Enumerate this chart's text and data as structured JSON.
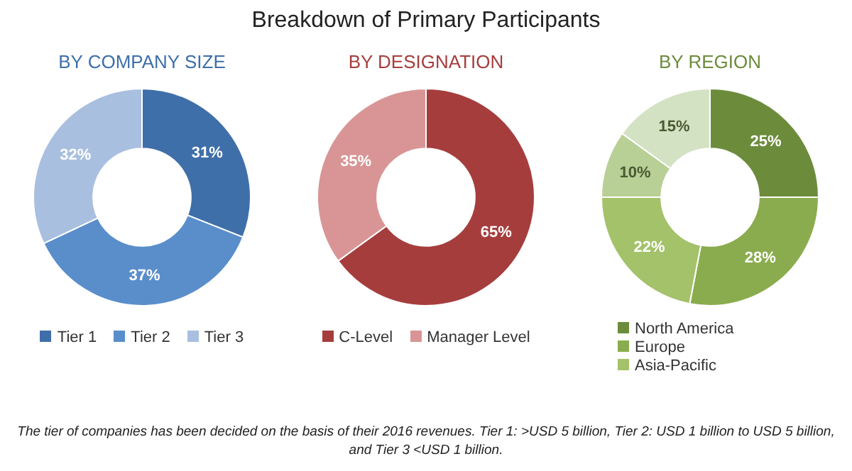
{
  "chart_data": [
    {
      "type": "other",
      "title": "Breakdown of Primary Participants",
      "annotations": [
        "The tier of companies has been decided on the basis of their 2016 revenues. Tier 1: >USD 5 billion, Tier 2: USD 1 billion to USD 5 billion, and Tier 3 <USD 1 billion."
      ]
    },
    {
      "type": "donut",
      "title": "BY COMPANY SIZE",
      "categories": [
        "Tier 1",
        "Tier 2",
        "Tier 3"
      ],
      "values": [
        31,
        37,
        32
      ],
      "value_labels": [
        "31%",
        "37%",
        "32%"
      ],
      "colors": [
        "#3f6fa9",
        "#5a8ecb",
        "#a9bfe0"
      ],
      "legend": "bottom"
    },
    {
      "type": "donut",
      "title": "BY DESIGNATION",
      "categories": [
        "C-Level",
        "Manager Level"
      ],
      "values": [
        65,
        35
      ],
      "value_labels": [
        "65%",
        "35%"
      ],
      "colors": [
        "#a63d3d",
        "#d99595"
      ],
      "legend": "bottom"
    },
    {
      "type": "donut",
      "title": "BY REGION",
      "categories": [
        "North America",
        "Europe",
        "Asia-Pacific",
        null,
        null
      ],
      "values": [
        25,
        28,
        22,
        10,
        15
      ],
      "value_labels": [
        "25%",
        "28%",
        "22%",
        "10%",
        "15%"
      ],
      "colors": [
        "#6c8c3c",
        "#8aac4e",
        "#a3c26a",
        "#b8cf96",
        "#d4e2c4"
      ],
      "legend": "bottom left"
    }
  ]
}
